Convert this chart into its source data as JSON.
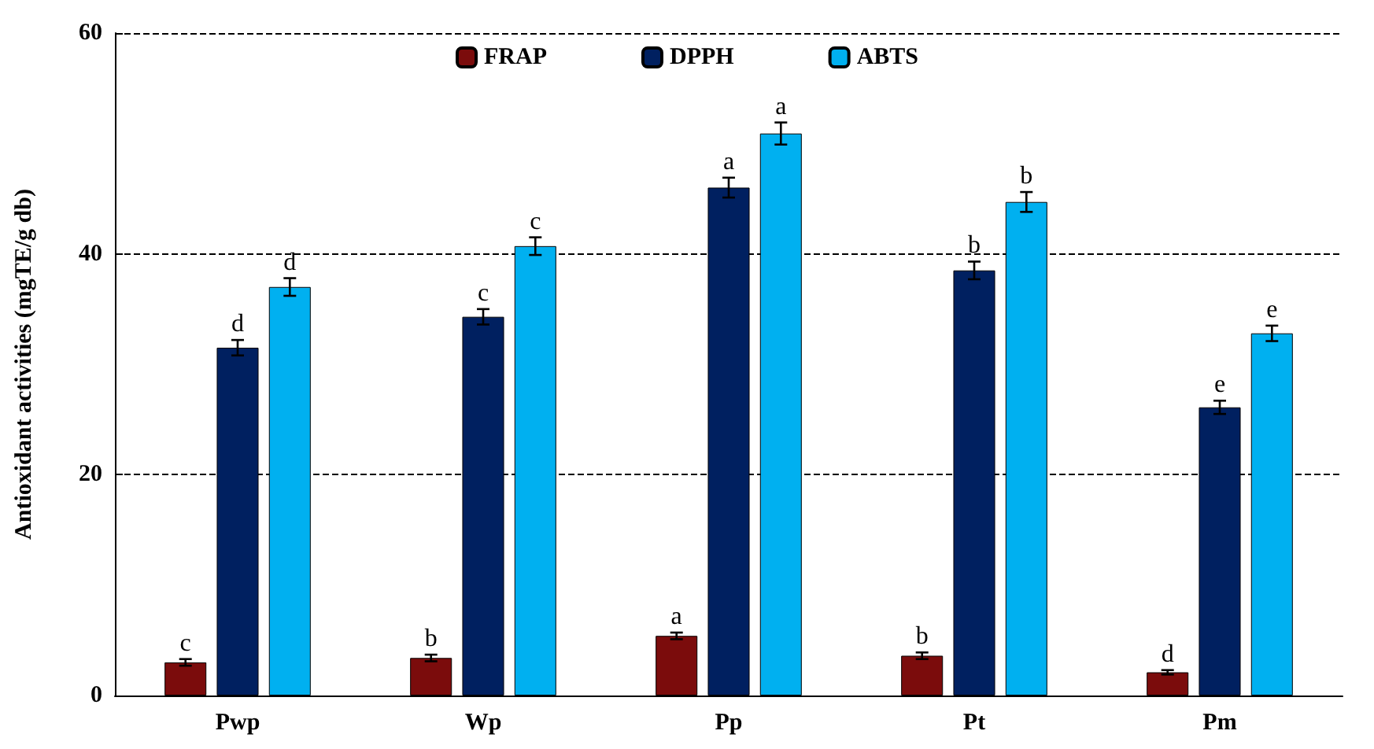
{
  "chart_data": {
    "type": "bar",
    "ylabel": "Antioxidant activities (mgTE/g db)",
    "categories": [
      "Pwp",
      "Wp",
      "Pp",
      "Pt",
      "Pm"
    ],
    "series": [
      {
        "name": "FRAP",
        "color": "#7b0c0c",
        "values": [
          3.0,
          3.4,
          5.4,
          3.6,
          2.1
        ],
        "errors": [
          0.3,
          0.3,
          0.3,
          0.3,
          0.2
        ],
        "value_labels": [
          "c",
          "b",
          "a",
          "b",
          "d"
        ]
      },
      {
        "name": "DPPH",
        "color": "#002060",
        "values": [
          31.5,
          34.3,
          46.0,
          38.5,
          26.1
        ],
        "errors": [
          0.7,
          0.7,
          0.9,
          0.8,
          0.6
        ],
        "value_labels": [
          "d",
          "c",
          "a",
          "b",
          "e"
        ]
      },
      {
        "name": "ABTS",
        "color": "#00b0f0",
        "values": [
          37.0,
          40.7,
          50.9,
          44.7,
          32.8
        ],
        "errors": [
          0.8,
          0.8,
          1.0,
          0.9,
          0.7
        ],
        "value_labels": [
          "d",
          "c",
          "a",
          "b",
          "e"
        ]
      }
    ],
    "ylim": [
      0,
      60
    ],
    "yticks": [
      0,
      20,
      40,
      60
    ],
    "grid": "y",
    "legend": "top"
  }
}
